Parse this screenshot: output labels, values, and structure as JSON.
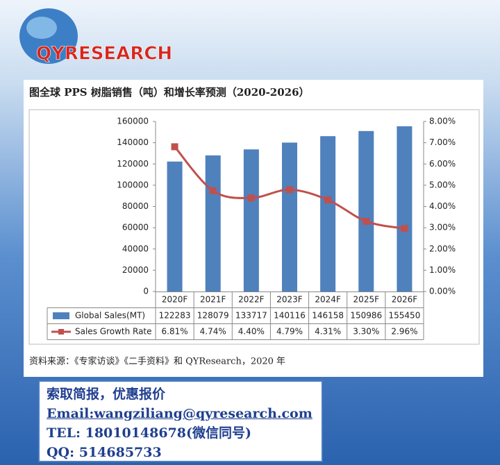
{
  "logo": "QYRESEARCH",
  "chart_data": {
    "type": "bar",
    "title": "图全球 PPS 树脂销售（吨）和增长率预测（2020-2026）",
    "categories": [
      "2020F",
      "2021F",
      "2022F",
      "2023F",
      "2024F",
      "2025F",
      "2026F"
    ],
    "series": [
      {
        "name": "Global Sales(MT)",
        "type": "bar",
        "color": "#4f81bd",
        "values": [
          122283,
          128079,
          133717,
          140116,
          146158,
          150986,
          155450
        ]
      },
      {
        "name": "Sales Growth Rate",
        "type": "line",
        "axis": "y2",
        "color": "#c0504d",
        "values": [
          6.81,
          4.74,
          4.4,
          4.79,
          4.31,
          3.3,
          2.96
        ],
        "value_labels": [
          "6.81%",
          "4.74%",
          "4.40%",
          "4.79%",
          "4.31%",
          "3.30%",
          "2.96%"
        ]
      }
    ],
    "ylim": [
      0,
      160000
    ],
    "yticks": [
      0,
      20000,
      40000,
      60000,
      80000,
      100000,
      120000,
      140000,
      160000
    ],
    "y2lim": [
      0,
      8
    ],
    "y2ticks": [
      {
        "value": 0,
        "label": "0.00%"
      },
      {
        "value": 1,
        "label": "1.00%"
      },
      {
        "value": 2,
        "label": "2.00%"
      },
      {
        "value": 3,
        "label": "3.00%"
      },
      {
        "value": 4,
        "label": "4.00%"
      },
      {
        "value": 5,
        "label": "5.00%"
      },
      {
        "value": 6,
        "label": "6.00%"
      },
      {
        "value": 7,
        "label": "7.00%"
      },
      {
        "value": 8,
        "label": "8.00%"
      }
    ],
    "grid": false,
    "source": "资料来源：《专家访谈》《二手资料》和 QYResearch，2020 年"
  },
  "contact": {
    "lines": [
      "索取简报，优惠报价",
      "Email:wangziliang@qyresearch.com",
      "TEL: 18010148678(微信同号)",
      "QQ: 514685733"
    ]
  }
}
